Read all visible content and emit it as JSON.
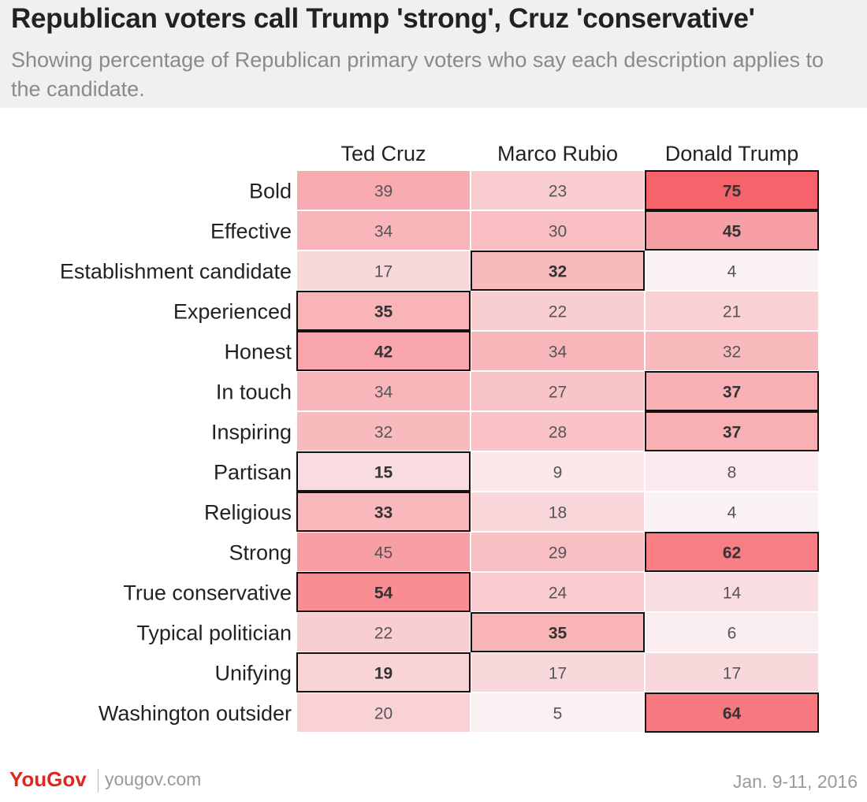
{
  "chart_data": {
    "type": "heatmap",
    "title": "Republican voters call Trump 'strong', Cruz 'conservative'",
    "subtitle": "Showing  percentage of Republican primary voters who say each description applies to the candidate.",
    "columns": [
      "Ted Cruz",
      "Marco Rubio",
      "Donald Trump"
    ],
    "rows": [
      "Bold",
      "Effective",
      "Establishment candidate",
      "Experienced",
      "Honest",
      "In touch",
      "Inspiring",
      "Partisan",
      "Religious",
      "Strong",
      "True conservative",
      "Typical politician",
      "Unifying",
      "Washington outsider"
    ],
    "values": [
      [
        39,
        23,
        75
      ],
      [
        34,
        30,
        45
      ],
      [
        17,
        32,
        4
      ],
      [
        35,
        22,
        21
      ],
      [
        42,
        34,
        32
      ],
      [
        34,
        27,
        37
      ],
      [
        32,
        28,
        37
      ],
      [
        15,
        9,
        8
      ],
      [
        33,
        18,
        4
      ],
      [
        45,
        29,
        62
      ],
      [
        54,
        24,
        14
      ],
      [
        22,
        35,
        6
      ],
      [
        19,
        17,
        17
      ],
      [
        20,
        5,
        64
      ]
    ],
    "value_max": 75,
    "colors": {
      "low": "#fafafc",
      "high": "#f7636b",
      "highlight_border": "#111111"
    }
  },
  "footer": {
    "logo": "YouGov",
    "url": "yougov.com",
    "date": "Jan. 9-11, 2016"
  }
}
